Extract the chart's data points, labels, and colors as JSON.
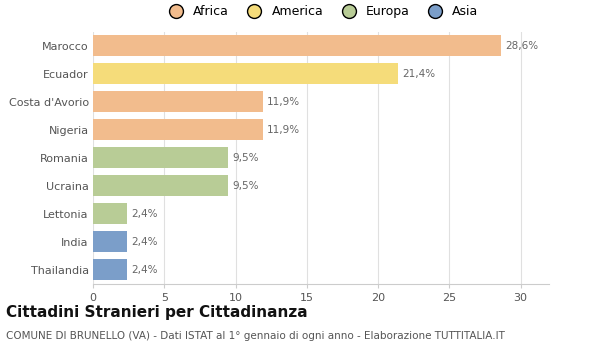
{
  "categories": [
    "Marocco",
    "Ecuador",
    "Costa d'Avorio",
    "Nigeria",
    "Romania",
    "Ucraina",
    "Lettonia",
    "India",
    "Thailandia"
  ],
  "values": [
    28.6,
    21.4,
    11.9,
    11.9,
    9.5,
    9.5,
    2.4,
    2.4,
    2.4
  ],
  "labels": [
    "28,6%",
    "21,4%",
    "11,9%",
    "11,9%",
    "9,5%",
    "9,5%",
    "2,4%",
    "2,4%",
    "2,4%"
  ],
  "colors": [
    "#F2BC8D",
    "#F5DC7A",
    "#F2BC8D",
    "#F2BC8D",
    "#B8CC96",
    "#B8CC96",
    "#B8CC96",
    "#7B9EC9",
    "#7B9EC9"
  ],
  "legend_labels": [
    "Africa",
    "America",
    "Europa",
    "Asia"
  ],
  "legend_colors": [
    "#F2BC8D",
    "#F5DC7A",
    "#B8CC96",
    "#7B9EC9"
  ],
  "xlim": [
    0,
    32
  ],
  "xticks": [
    0,
    5,
    10,
    15,
    20,
    25,
    30
  ],
  "title": "Cittadini Stranieri per Cittadinanza",
  "subtitle": "COMUNE DI BRUNELLO (VA) - Dati ISTAT al 1° gennaio di ogni anno - Elaborazione TUTTITALIA.IT",
  "background_color": "#ffffff",
  "bar_height": 0.75,
  "title_fontsize": 11,
  "subtitle_fontsize": 7.5,
  "label_fontsize": 7.5,
  "tick_fontsize": 8,
  "legend_fontsize": 9
}
